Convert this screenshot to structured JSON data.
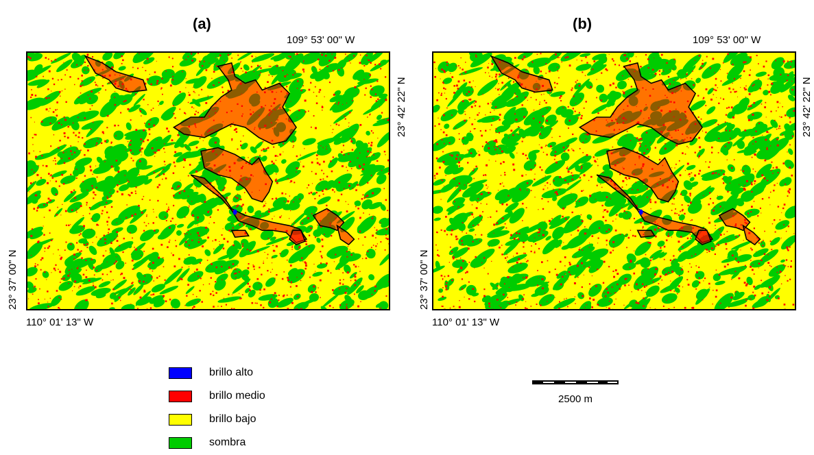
{
  "panels": [
    {
      "label": "(a)",
      "lon_top_right": "109° 53' 00\" W",
      "lon_bottom_left": "110° 01' 13\" W",
      "lat_right_top": "23° 42' 22\" N",
      "lat_left_bottom": "23° 37' 00\" N"
    },
    {
      "label": "(b)",
      "lon_top_right": "109° 53' 00\" W",
      "lon_bottom_left": "110° 01' 13\" W",
      "lat_right_top": "23° 42' 22\" N",
      "lat_left_bottom": "23° 37' 00\" N"
    }
  ],
  "legend": [
    {
      "label": "brillo alto",
      "color": "#0000ff"
    },
    {
      "label": "brillo medio",
      "color": "#ff0000"
    },
    {
      "label": "brillo bajo",
      "color": "#ffff00"
    },
    {
      "label": "sombra",
      "color": "#00cc00"
    }
  ],
  "scale": {
    "label": "2500 m"
  },
  "colors": {
    "shadow": "#00cc00",
    "low": "#ffff00",
    "medium": "#ff0000",
    "high": "#0000ff",
    "outline": "#000000"
  }
}
